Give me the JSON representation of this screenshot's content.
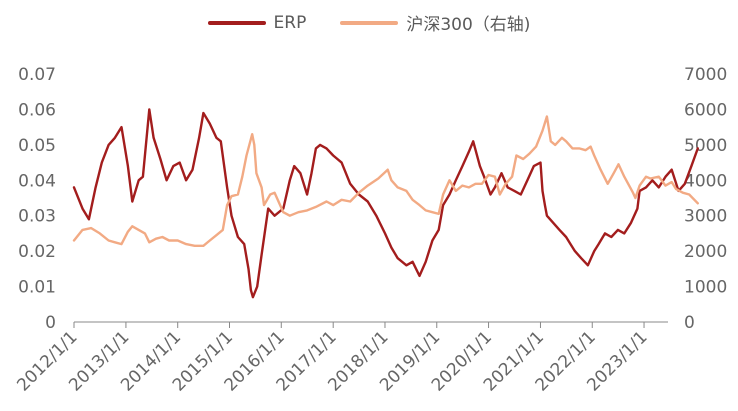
{
  "chart_data": {
    "type": "line",
    "title": "",
    "xlabel": "",
    "ylabel_left": "",
    "ylabel_right": "",
    "x_ticks": [
      "2012/1/1",
      "2013/1/1",
      "2014/1/1",
      "2015/1/1",
      "2016/1/1",
      "2017/1/1",
      "2018/1/1",
      "2019/1/1",
      "2020/1/1",
      "2021/1/1",
      "2022/1/1",
      "2023/1/1"
    ],
    "y_left_ticks": [
      "0",
      "0.01",
      "0.02",
      "0.03",
      "0.04",
      "0.05",
      "0.06",
      "0.07"
    ],
    "y_right_ticks": [
      "0",
      "1000",
      "2000",
      "3000",
      "4000",
      "5000",
      "6000",
      "7000"
    ],
    "ylim_left": [
      0,
      0.07
    ],
    "ylim_right": [
      0,
      7000
    ],
    "legend_position": "top-center",
    "series": [
      {
        "name": "ERP",
        "axis": "left",
        "color": "#a31d1d",
        "points": [
          [
            "2012/1/1",
            0.038
          ],
          [
            "2012/3/1",
            0.032
          ],
          [
            "2012/4/15",
            0.029
          ],
          [
            "2012/6/1",
            0.038
          ],
          [
            "2012/7/15",
            0.045
          ],
          [
            "2012/9/1",
            0.05
          ],
          [
            "2012/10/15",
            0.052
          ],
          [
            "2012/12/1",
            0.055
          ],
          [
            "2013/1/15",
            0.044
          ],
          [
            "2013/2/15",
            0.034
          ],
          [
            "2013/4/1",
            0.04
          ],
          [
            "2013/5/1",
            0.041
          ],
          [
            "2013/6/15",
            0.06
          ],
          [
            "2013/7/15",
            0.052
          ],
          [
            "2013/9/1",
            0.046
          ],
          [
            "2013/10/15",
            0.04
          ],
          [
            "2013/12/1",
            0.044
          ],
          [
            "2014/1/15",
            0.045
          ],
          [
            "2014/3/1",
            0.04
          ],
          [
            "2014/4/15",
            0.043
          ],
          [
            "2014/6/1",
            0.052
          ],
          [
            "2014/7/1",
            0.059
          ],
          [
            "2014/8/15",
            0.056
          ],
          [
            "2014/10/1",
            0.052
          ],
          [
            "2014/11/1",
            0.051
          ],
          [
            "2014/12/15",
            0.038
          ],
          [
            "2015/1/15",
            0.03
          ],
          [
            "2015/3/1",
            0.024
          ],
          [
            "2015/4/15",
            0.022
          ],
          [
            "2015/5/15",
            0.015
          ],
          [
            "2015/6/1",
            0.009
          ],
          [
            "2015/6/15",
            0.007
          ],
          [
            "2015/7/15",
            0.01
          ],
          [
            "2015/8/15",
            0.019
          ],
          [
            "2015/10/1",
            0.032
          ],
          [
            "2015/11/15",
            0.03
          ],
          [
            "2016/1/15",
            0.032
          ],
          [
            "2016/3/1",
            0.04
          ],
          [
            "2016/4/1",
            0.044
          ],
          [
            "2016/5/15",
            0.042
          ],
          [
            "2016/7/1",
            0.036
          ],
          [
            "2016/8/1",
            0.042
          ],
          [
            "2016/9/1",
            0.049
          ],
          [
            "2016/10/1",
            0.05
          ],
          [
            "2016/11/15",
            0.049
          ],
          [
            "2017/1/1",
            0.047
          ],
          [
            "2017/3/1",
            0.045
          ],
          [
            "2017/5/1",
            0.039
          ],
          [
            "2017/7/1",
            0.036
          ],
          [
            "2017/9/1",
            0.034
          ],
          [
            "2017/11/1",
            0.03
          ],
          [
            "2018/1/1",
            0.025
          ],
          [
            "2018/2/15",
            0.021
          ],
          [
            "2018/4/1",
            0.018
          ],
          [
            "2018/6/1",
            0.016
          ],
          [
            "2018/7/15",
            0.017
          ],
          [
            "2018/9/1",
            0.013
          ],
          [
            "2018/10/15",
            0.017
          ],
          [
            "2018/12/1",
            0.023
          ],
          [
            "2019/1/15",
            0.026
          ],
          [
            "2019/2/15",
            0.033
          ],
          [
            "2019/4/1",
            0.036
          ],
          [
            "2019/5/15",
            0.04
          ],
          [
            "2019/7/1",
            0.044
          ],
          [
            "2019/8/15",
            0.048
          ],
          [
            "2019/9/15",
            0.051
          ],
          [
            "2019/11/1",
            0.044
          ],
          [
            "2019/12/1",
            0.041
          ],
          [
            "2020/1/15",
            0.036
          ],
          [
            "2020/2/15",
            0.038
          ],
          [
            "2020/4/1",
            0.042
          ],
          [
            "2020/5/15",
            0.038
          ],
          [
            "2020/7/1",
            0.037
          ],
          [
            "2020/8/15",
            0.036
          ],
          [
            "2020/10/1",
            0.04
          ],
          [
            "2020/11/15",
            0.044
          ],
          [
            "2021/1/1",
            0.045
          ],
          [
            "2021/1/15",
            0.037
          ],
          [
            "2021/2/1",
            0.033
          ],
          [
            "2021/2/15",
            0.03
          ],
          [
            "2021/4/1",
            0.028
          ],
          [
            "2021/5/15",
            0.026
          ],
          [
            "2021/7/1",
            0.024
          ],
          [
            "2021/8/1",
            0.022
          ],
          [
            "2021/9/1",
            0.02
          ],
          [
            "2021/10/15",
            0.018
          ],
          [
            "2021/12/1",
            0.016
          ],
          [
            "2022/1/15",
            0.02
          ],
          [
            "2022/2/15",
            0.022
          ],
          [
            "2022/4/1",
            0.025
          ],
          [
            "2022/5/15",
            0.024
          ],
          [
            "2022/7/1",
            0.026
          ],
          [
            "2022/8/15",
            0.025
          ],
          [
            "2022/10/1",
            0.028
          ],
          [
            "2022/11/15",
            0.032
          ],
          [
            "2022/12/1",
            0.037
          ],
          [
            "2023/1/15",
            0.038
          ],
          [
            "2023/3/1",
            0.04
          ],
          [
            "2023/4/15",
            0.038
          ],
          [
            "2023/6/1",
            0.041
          ],
          [
            "2023/7/15",
            0.043
          ],
          [
            "2023/9/1",
            0.037
          ],
          [
            "2023/10/15",
            0.039
          ],
          [
            "2023/12/1",
            0.044
          ],
          [
            "2024/1/15",
            0.049
          ]
        ]
      },
      {
        "name": "沪深300（右轴)",
        "axis": "right",
        "color": "#f2aa84",
        "points": [
          [
            "2012/1/1",
            2300
          ],
          [
            "2012/3/1",
            2600
          ],
          [
            "2012/5/1",
            2650
          ],
          [
            "2012/7/1",
            2500
          ],
          [
            "2012/9/1",
            2300
          ],
          [
            "2012/10/15",
            2250
          ],
          [
            "2012/12/1",
            2200
          ],
          [
            "2013/1/15",
            2550
          ],
          [
            "2013/2/15",
            2700
          ],
          [
            "2013/4/1",
            2600
          ],
          [
            "2013/5/15",
            2500
          ],
          [
            "2013/6/15",
            2250
          ],
          [
            "2013/8/1",
            2350
          ],
          [
            "2013/9/15",
            2400
          ],
          [
            "2013/11/1",
            2300
          ],
          [
            "2014/1/1",
            2300
          ],
          [
            "2014/3/1",
            2200
          ],
          [
            "2014/5/1",
            2150
          ],
          [
            "2014/7/1",
            2150
          ],
          [
            "2014/8/15",
            2300
          ],
          [
            "2014/10/1",
            2450
          ],
          [
            "2014/11/15",
            2600
          ],
          [
            "2014/12/15",
            3300
          ],
          [
            "2015/1/15",
            3550
          ],
          [
            "2015/3/1",
            3600
          ],
          [
            "2015/4/1",
            4100
          ],
          [
            "2015/5/1",
            4700
          ],
          [
            "2015/6/10",
            5300
          ],
          [
            "2015/6/25",
            5000
          ],
          [
            "2015/7/10",
            4200
          ],
          [
            "2015/8/15",
            3800
          ],
          [
            "2015/9/1",
            3300
          ],
          [
            "2015/10/15",
            3600
          ],
          [
            "2015/11/15",
            3650
          ],
          [
            "2016/1/15",
            3100
          ],
          [
            "2016/3/1",
            3000
          ],
          [
            "2016/5/1",
            3100
          ],
          [
            "2016/7/1",
            3150
          ],
          [
            "2016/9/1",
            3250
          ],
          [
            "2016/11/15",
            3400
          ],
          [
            "2017/1/1",
            3300
          ],
          [
            "2017/3/1",
            3450
          ],
          [
            "2017/5/1",
            3400
          ],
          [
            "2017/7/1",
            3650
          ],
          [
            "2017/9/1",
            3850
          ],
          [
            "2017/11/15",
            4050
          ],
          [
            "2018/1/20",
            4300
          ],
          [
            "2018/2/15",
            4000
          ],
          [
            "2018/4/1",
            3800
          ],
          [
            "2018/6/1",
            3700
          ],
          [
            "2018/7/15",
            3450
          ],
          [
            "2018/9/1",
            3300
          ],
          [
            "2018/10/15",
            3150
          ],
          [
            "2018/12/1",
            3100
          ],
          [
            "2019/1/15",
            3050
          ],
          [
            "2019/2/15",
            3600
          ],
          [
            "2019/4/1",
            4000
          ],
          [
            "2019/5/15",
            3700
          ],
          [
            "2019/7/1",
            3850
          ],
          [
            "2019/8/15",
            3800
          ],
          [
            "2019/10/1",
            3900
          ],
          [
            "2019/11/15",
            3900
          ],
          [
            "2020/1/1",
            4150
          ],
          [
            "2020/2/15",
            4100
          ],
          [
            "2020/3/20",
            3600
          ],
          [
            "2020/5/1",
            3900
          ],
          [
            "2020/6/15",
            4100
          ],
          [
            "2020/7/15",
            4700
          ],
          [
            "2020/9/1",
            4600
          ],
          [
            "2020/10/15",
            4750
          ],
          [
            "2020/12/1",
            4950
          ],
          [
            "2021/1/15",
            5400
          ],
          [
            "2021/2/15",
            5800
          ],
          [
            "2021/3/15",
            5100
          ],
          [
            "2021/4/15",
            5000
          ],
          [
            "2021/6/1",
            5200
          ],
          [
            "2021/7/1",
            5100
          ],
          [
            "2021/8/15",
            4900
          ],
          [
            "2021/10/1",
            4900
          ],
          [
            "2021/11/15",
            4850
          ],
          [
            "2021/12/20",
            4950
          ],
          [
            "2022/1/15",
            4700
          ],
          [
            "2022/3/1",
            4300
          ],
          [
            "2022/4/20",
            3900
          ],
          [
            "2022/6/1",
            4200
          ],
          [
            "2022/7/5",
            4450
          ],
          [
            "2022/8/15",
            4100
          ],
          [
            "2022/10/15",
            3650
          ],
          [
            "2022/11/1",
            3500
          ],
          [
            "2022/12/1",
            3850
          ],
          [
            "2023/1/15",
            4100
          ],
          [
            "2023/2/15",
            4050
          ],
          [
            "2023/4/15",
            4100
          ],
          [
            "2023/6/1",
            3850
          ],
          [
            "2023/7/15",
            3950
          ],
          [
            "2023/8/15",
            3750
          ],
          [
            "2023/10/1",
            3650
          ],
          [
            "2023/11/15",
            3600
          ],
          [
            "2024/1/15",
            3350
          ]
        ]
      }
    ]
  }
}
